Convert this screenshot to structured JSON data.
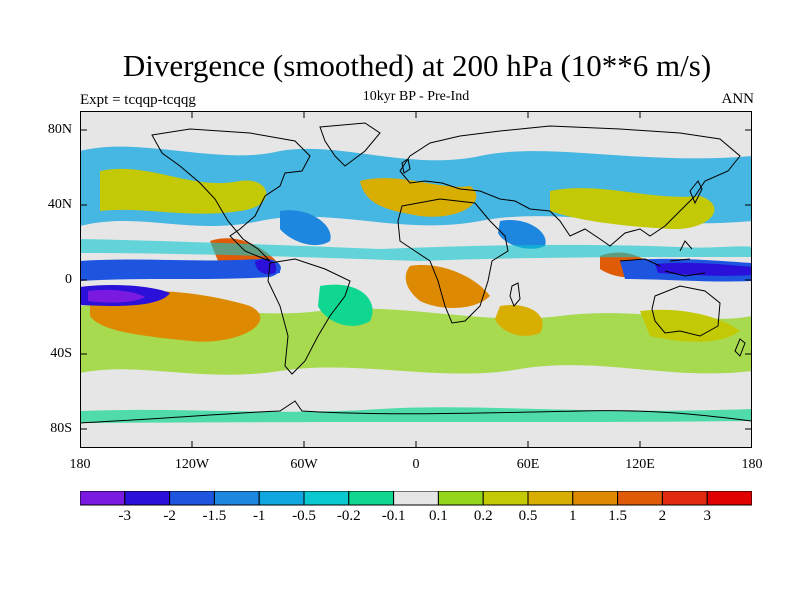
{
  "title": "Divergence (smoothed) at 200 hPa (10**6 m/s)",
  "experiment_label": "Expt = tcqqp-tcqqg",
  "subtitle": "10kyr BP - Pre-Ind",
  "season": "ANN",
  "lat_ticks": [
    "80N",
    "40N",
    "0",
    "40S",
    "80S"
  ],
  "lon_ticks": [
    "180",
    "120W",
    "60W",
    "0",
    "60E",
    "120E",
    "180"
  ],
  "colorbar": {
    "colors": [
      "#7a19e0",
      "#2a10d8",
      "#1d55e0",
      "#1d86de",
      "#10a6e0",
      "#0ac8d0",
      "#0fd790",
      "#e6e6e6",
      "#93d61c",
      "#c3c905",
      "#d8ae02",
      "#dd8a02",
      "#e05b08",
      "#e02a10",
      "#e00000"
    ],
    "labels": [
      "-3",
      "-2",
      "-1.5",
      "-1",
      "-0.5",
      "-0.2",
      "-0.1",
      "0.1",
      "0.2",
      "0.5",
      "1",
      "1.5",
      "2",
      "3"
    ]
  },
  "chart_data": {
    "type": "filled-contour-map",
    "variable": "Divergence (smoothed) at 200 hPa",
    "units": "10**6 m/s",
    "lon_range": [
      -180,
      180
    ],
    "lat_range": [
      -90,
      90
    ],
    "contour_levels": [
      -3,
      -2,
      -1.5,
      -1,
      -0.5,
      -0.2,
      -0.1,
      0.1,
      0.2,
      0.5,
      1,
      1.5,
      2,
      3
    ],
    "features": [
      {
        "region": "Equatorial central Pacific",
        "lon": -160,
        "lat": -2,
        "value": -3
      },
      {
        "region": "Western Pacific warm pool",
        "lon": 150,
        "lat": 3,
        "value": -2
      },
      {
        "region": "Eastern equatorial Pacific",
        "lon": -95,
        "lat": 5,
        "value": 1.5
      },
      {
        "region": "South Pacific",
        "lon": -150,
        "lat": -15,
        "value": 1.5
      },
      {
        "region": "Central Africa",
        "lon": 20,
        "lat": -3,
        "value": 1
      },
      {
        "region": "Arabian Sea",
        "lon": 60,
        "lat": 15,
        "value": 1
      },
      {
        "region": "Antarctica",
        "lon": 0,
        "lat": -80,
        "value": 0
      },
      {
        "region": "Arctic",
        "lon": 0,
        "lat": 85,
        "value": 0
      }
    ]
  }
}
